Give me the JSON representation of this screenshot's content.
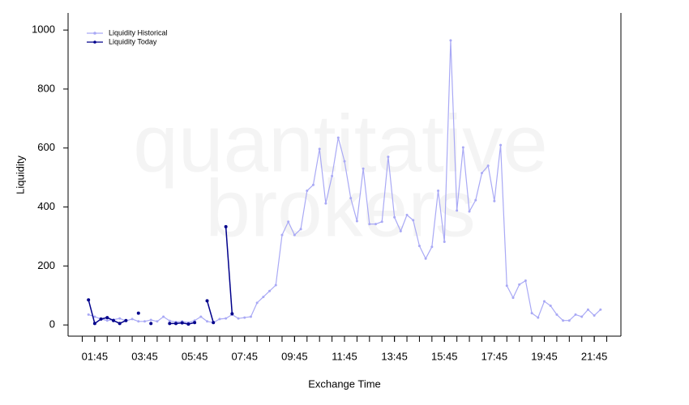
{
  "chart_data": {
    "type": "line",
    "watermark": [
      "quantitative",
      "brokers"
    ],
    "xlabel": "Exchange Time",
    "ylabel": "Liquidity",
    "x": [
      "01:30",
      "01:45",
      "02:00",
      "02:15",
      "02:30",
      "02:45",
      "03:00",
      "03:15",
      "03:30",
      "03:45",
      "04:00",
      "04:15",
      "04:30",
      "04:45",
      "05:00",
      "05:15",
      "05:30",
      "05:45",
      "06:00",
      "06:15",
      "06:30",
      "06:45",
      "07:00",
      "07:15",
      "07:30",
      "07:45",
      "08:00",
      "08:15",
      "08:30",
      "08:45",
      "09:00",
      "09:15",
      "09:30",
      "09:45",
      "10:00",
      "10:15",
      "10:30",
      "10:45",
      "11:00",
      "11:15",
      "11:30",
      "11:45",
      "12:00",
      "12:15",
      "12:30",
      "12:45",
      "13:00",
      "13:15",
      "13:30",
      "13:45",
      "14:00",
      "14:15",
      "14:30",
      "14:45",
      "15:00",
      "15:15",
      "15:30",
      "15:45",
      "16:00",
      "16:15",
      "16:30",
      "16:45",
      "17:00",
      "17:15",
      "17:30",
      "17:45",
      "18:00",
      "18:15",
      "18:30",
      "18:45",
      "19:00",
      "19:15",
      "19:30",
      "19:45",
      "20:00",
      "20:15",
      "20:30",
      "20:45",
      "21:00",
      "21:15",
      "21:30",
      "21:45",
      "22:00"
    ],
    "series": [
      {
        "name": "Liquidity Historical",
        "color": "#a9a9f5",
        "values": [
          35,
          28,
          20,
          15,
          18,
          22,
          14,
          20,
          12,
          12,
          17,
          12,
          28,
          14,
          10,
          12,
          8,
          15,
          28,
          12,
          8,
          20,
          22,
          35,
          22,
          25,
          28,
          75,
          95,
          115,
          135,
          305,
          350,
          305,
          325,
          455,
          475,
          597,
          412,
          505,
          635,
          555,
          430,
          352,
          530,
          342,
          342,
          350,
          570,
          365,
          318,
          373,
          355,
          268,
          225,
          265,
          455,
          282,
          965,
          388,
          602,
          385,
          423,
          515,
          540,
          420,
          610,
          133,
          92,
          137,
          150,
          40,
          25,
          80,
          65,
          35,
          15,
          15,
          35,
          28,
          52,
          32,
          52
        ]
      },
      {
        "name": "Liquidity Today",
        "color": "#00008b",
        "values": [
          85,
          5,
          20,
          25,
          15,
          5,
          15,
          null,
          40,
          null,
          5,
          null,
          null,
          5,
          5,
          7,
          3,
          8,
          null,
          82,
          8,
          null,
          333,
          38,
          null,
          null,
          null,
          null,
          null,
          null,
          null,
          null,
          null,
          null,
          null,
          null,
          null,
          null,
          null,
          null,
          null,
          null,
          null,
          null,
          null,
          null,
          null,
          null,
          null,
          null,
          null,
          null,
          null,
          null,
          null,
          null,
          null,
          null,
          null,
          null,
          null,
          null,
          null,
          null,
          null,
          null,
          null,
          null,
          null,
          null,
          null,
          null,
          null,
          null,
          null,
          null,
          null,
          null,
          null,
          null,
          null,
          null,
          null
        ]
      }
    ],
    "xlim": [
      "00:41",
      "22:49"
    ],
    "xticks": [
      "01:45",
      "03:45",
      "05:45",
      "07:45",
      "09:45",
      "11:45",
      "13:45",
      "15:45",
      "17:45",
      "19:45",
      "21:45"
    ],
    "xminorticks": [
      "01:15",
      "01:45",
      "02:15",
      "02:45",
      "03:15",
      "03:45",
      "04:15",
      "04:45",
      "05:15",
      "05:45",
      "06:15",
      "06:45",
      "07:15",
      "07:45",
      "08:15",
      "08:45",
      "09:15",
      "09:45",
      "10:15",
      "10:45",
      "11:15",
      "11:45",
      "12:15",
      "12:45",
      "13:15",
      "13:45",
      "14:15",
      "14:45",
      "15:15",
      "15:45",
      "16:15",
      "16:45",
      "17:15",
      "17:45",
      "18:15",
      "18:45",
      "19:15",
      "19:45",
      "20:15",
      "20:45",
      "21:15",
      "21:45",
      "22:15"
    ],
    "ylim": [
      -38,
      1058
    ],
    "yticks": [
      0,
      200,
      400,
      600,
      800,
      1000
    ],
    "legend": "top-left"
  }
}
